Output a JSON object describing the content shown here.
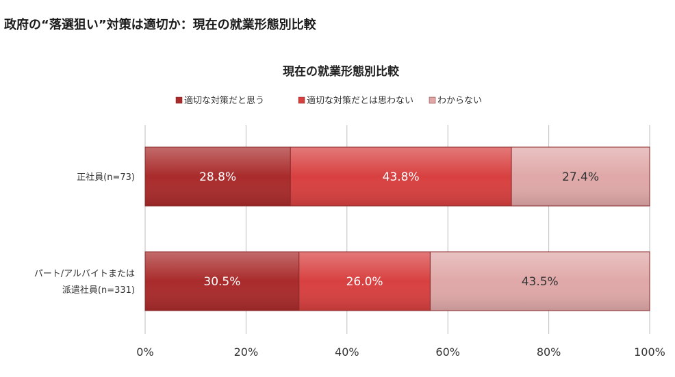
{
  "page": {
    "heading": "政府の“落選狙い”対策は適切か：現在の就業形態別比較"
  },
  "chart_data": {
    "type": "bar",
    "orientation": "horizontal",
    "stacked": true,
    "percent": true,
    "title": "現在の就業形態別比較",
    "categories": [
      [
        "正社員(n=73)"
      ],
      [
        "パート/アルバイトまたは",
        "派遣社員(n=331)"
      ]
    ],
    "series": [
      {
        "name": "適切な対策だと思う",
        "color": "#a92b2b",
        "values": [
          28.8,
          30.5
        ],
        "labels": [
          "28.8%",
          "30.5%"
        ],
        "label_color": "#ffffff"
      },
      {
        "name": "適切な対策だとは思わない",
        "color": "#d84040",
        "values": [
          43.8,
          26.0
        ],
        "labels": [
          "43.8%",
          "26.0%"
        ],
        "label_color": "#ffffff"
      },
      {
        "name": "わからない",
        "color": "#e0a8a8",
        "values": [
          27.4,
          43.5
        ],
        "labels": [
          "27.4%",
          "43.5%"
        ],
        "label_color": "#333333"
      }
    ],
    "xlim": [
      0,
      100
    ],
    "xticks": [
      "0%",
      "20%",
      "40%",
      "60%",
      "80%",
      "100%"
    ],
    "grid": true,
    "legend": "top"
  }
}
